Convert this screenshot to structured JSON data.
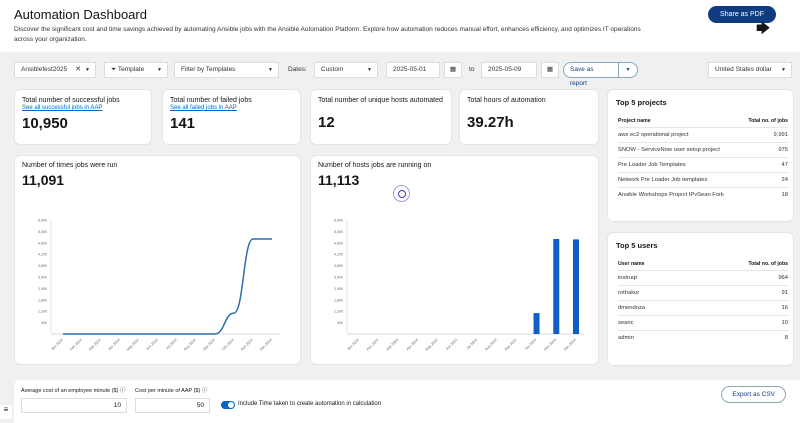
{
  "header": {
    "title": "Automation Dashboard",
    "description": "Discover the significant cost and time savings achieved by automating Ansible jobs with the Ansible Automation Platform. Explore how automation reduces manual effort, enhances efficiency, and optimizes IT operations across your organization.",
    "share_label": "Share as PDF"
  },
  "filters": {
    "event": "Ansiblefest2025",
    "filter_type": "Template",
    "filter_placeholder": "Filter by Templates",
    "dates_label": "Dates:",
    "date_range": "Custom",
    "start": "2025-05-01",
    "to": "to",
    "end": "2025-05-09",
    "save_label": "Save as report",
    "currency": "United States dollar"
  },
  "stats": [
    {
      "title": "Total number of successful jobs",
      "link": "See all successful jobs in AAP",
      "value": "10,950"
    },
    {
      "title": "Total number of failed jobs",
      "link": "See all failed jobs in AAP",
      "value": "141"
    },
    {
      "title": "Total number of unique hosts automated",
      "value": "12"
    },
    {
      "title": "Total hours of automation",
      "value": "39.27h"
    }
  ],
  "chart_data": [
    {
      "type": "line",
      "title": "Number of times jobs were run",
      "total": "11,091",
      "categories": [
        "Jan 2024",
        "Feb 2024",
        "Mar 2024",
        "Apr 2024",
        "May 2024",
        "Jun 2024",
        "Jul 2024",
        "Aug 2024",
        "Sep 2024",
        "Oct 2024",
        "Nov 2024",
        "Dec 2024"
      ],
      "values": [
        0,
        0,
        0,
        0,
        0,
        0,
        0,
        0,
        0,
        1100,
        5000,
        5000
      ],
      "yticks": [
        "600",
        "1,200",
        "1,800",
        "2,400",
        "3,000",
        "3,600",
        "4,200",
        "4,800",
        "5,400",
        "6,000"
      ],
      "ylim": [
        0,
        6000
      ],
      "color": "#2b6cb0"
    },
    {
      "type": "bar",
      "title": "Number of hosts jobs are running on",
      "total": "11,113",
      "categories": [
        "Jan 2024",
        "Feb 2024",
        "Mar 2024",
        "Apr 2024",
        "May 2024",
        "Jun 2024",
        "Jul 2024",
        "Aug 2024",
        "Sep 2024",
        "Oct 2024",
        "Nov 2024",
        "Dec 2024"
      ],
      "values": [
        0,
        0,
        0,
        0,
        0,
        0,
        0,
        0,
        0,
        1100,
        5000,
        4980
      ],
      "yticks": [
        "600",
        "1,200",
        "1,800",
        "2,400",
        "3,000",
        "3,600",
        "4,200",
        "4,800",
        "5,400",
        "6,000"
      ],
      "ylim": [
        0,
        6000
      ],
      "color": "#0d5fc7"
    }
  ],
  "projects": {
    "title": "Top 5 projects",
    "col1": "Project name",
    "col2": "Total no. of jobs",
    "rows": [
      [
        "aws ec2 operational project",
        "9,991"
      ],
      [
        "SNOW - ServiceNow user setup project",
        "975"
      ],
      [
        "Pre Loader Job Templates",
        "47"
      ],
      [
        "Network Pre Loader Job templates",
        "24"
      ],
      [
        "Ansible Workshops Project IPvSean Fork",
        "18"
      ]
    ]
  },
  "users": {
    "title": "Top 5 users",
    "col1": "User name",
    "col2": "Total no. of jobs",
    "rows": [
      [
        "instruqt",
        "964"
      ],
      [
        "rothakur",
        "91"
      ],
      [
        "dmendoza",
        "16"
      ],
      [
        "seanc",
        "10"
      ],
      [
        "admin",
        "8"
      ]
    ]
  },
  "bottom": {
    "employee_cost_label": "Average cost of an employee minute ($)",
    "employee_cost": "10",
    "aap_cost_label": "Cost per minute of AAP ($)",
    "aap_cost": "50",
    "toggle_label": "Include Time taken to create automation in calculation",
    "toggle_on": true,
    "export_label": "Export as CSV"
  }
}
